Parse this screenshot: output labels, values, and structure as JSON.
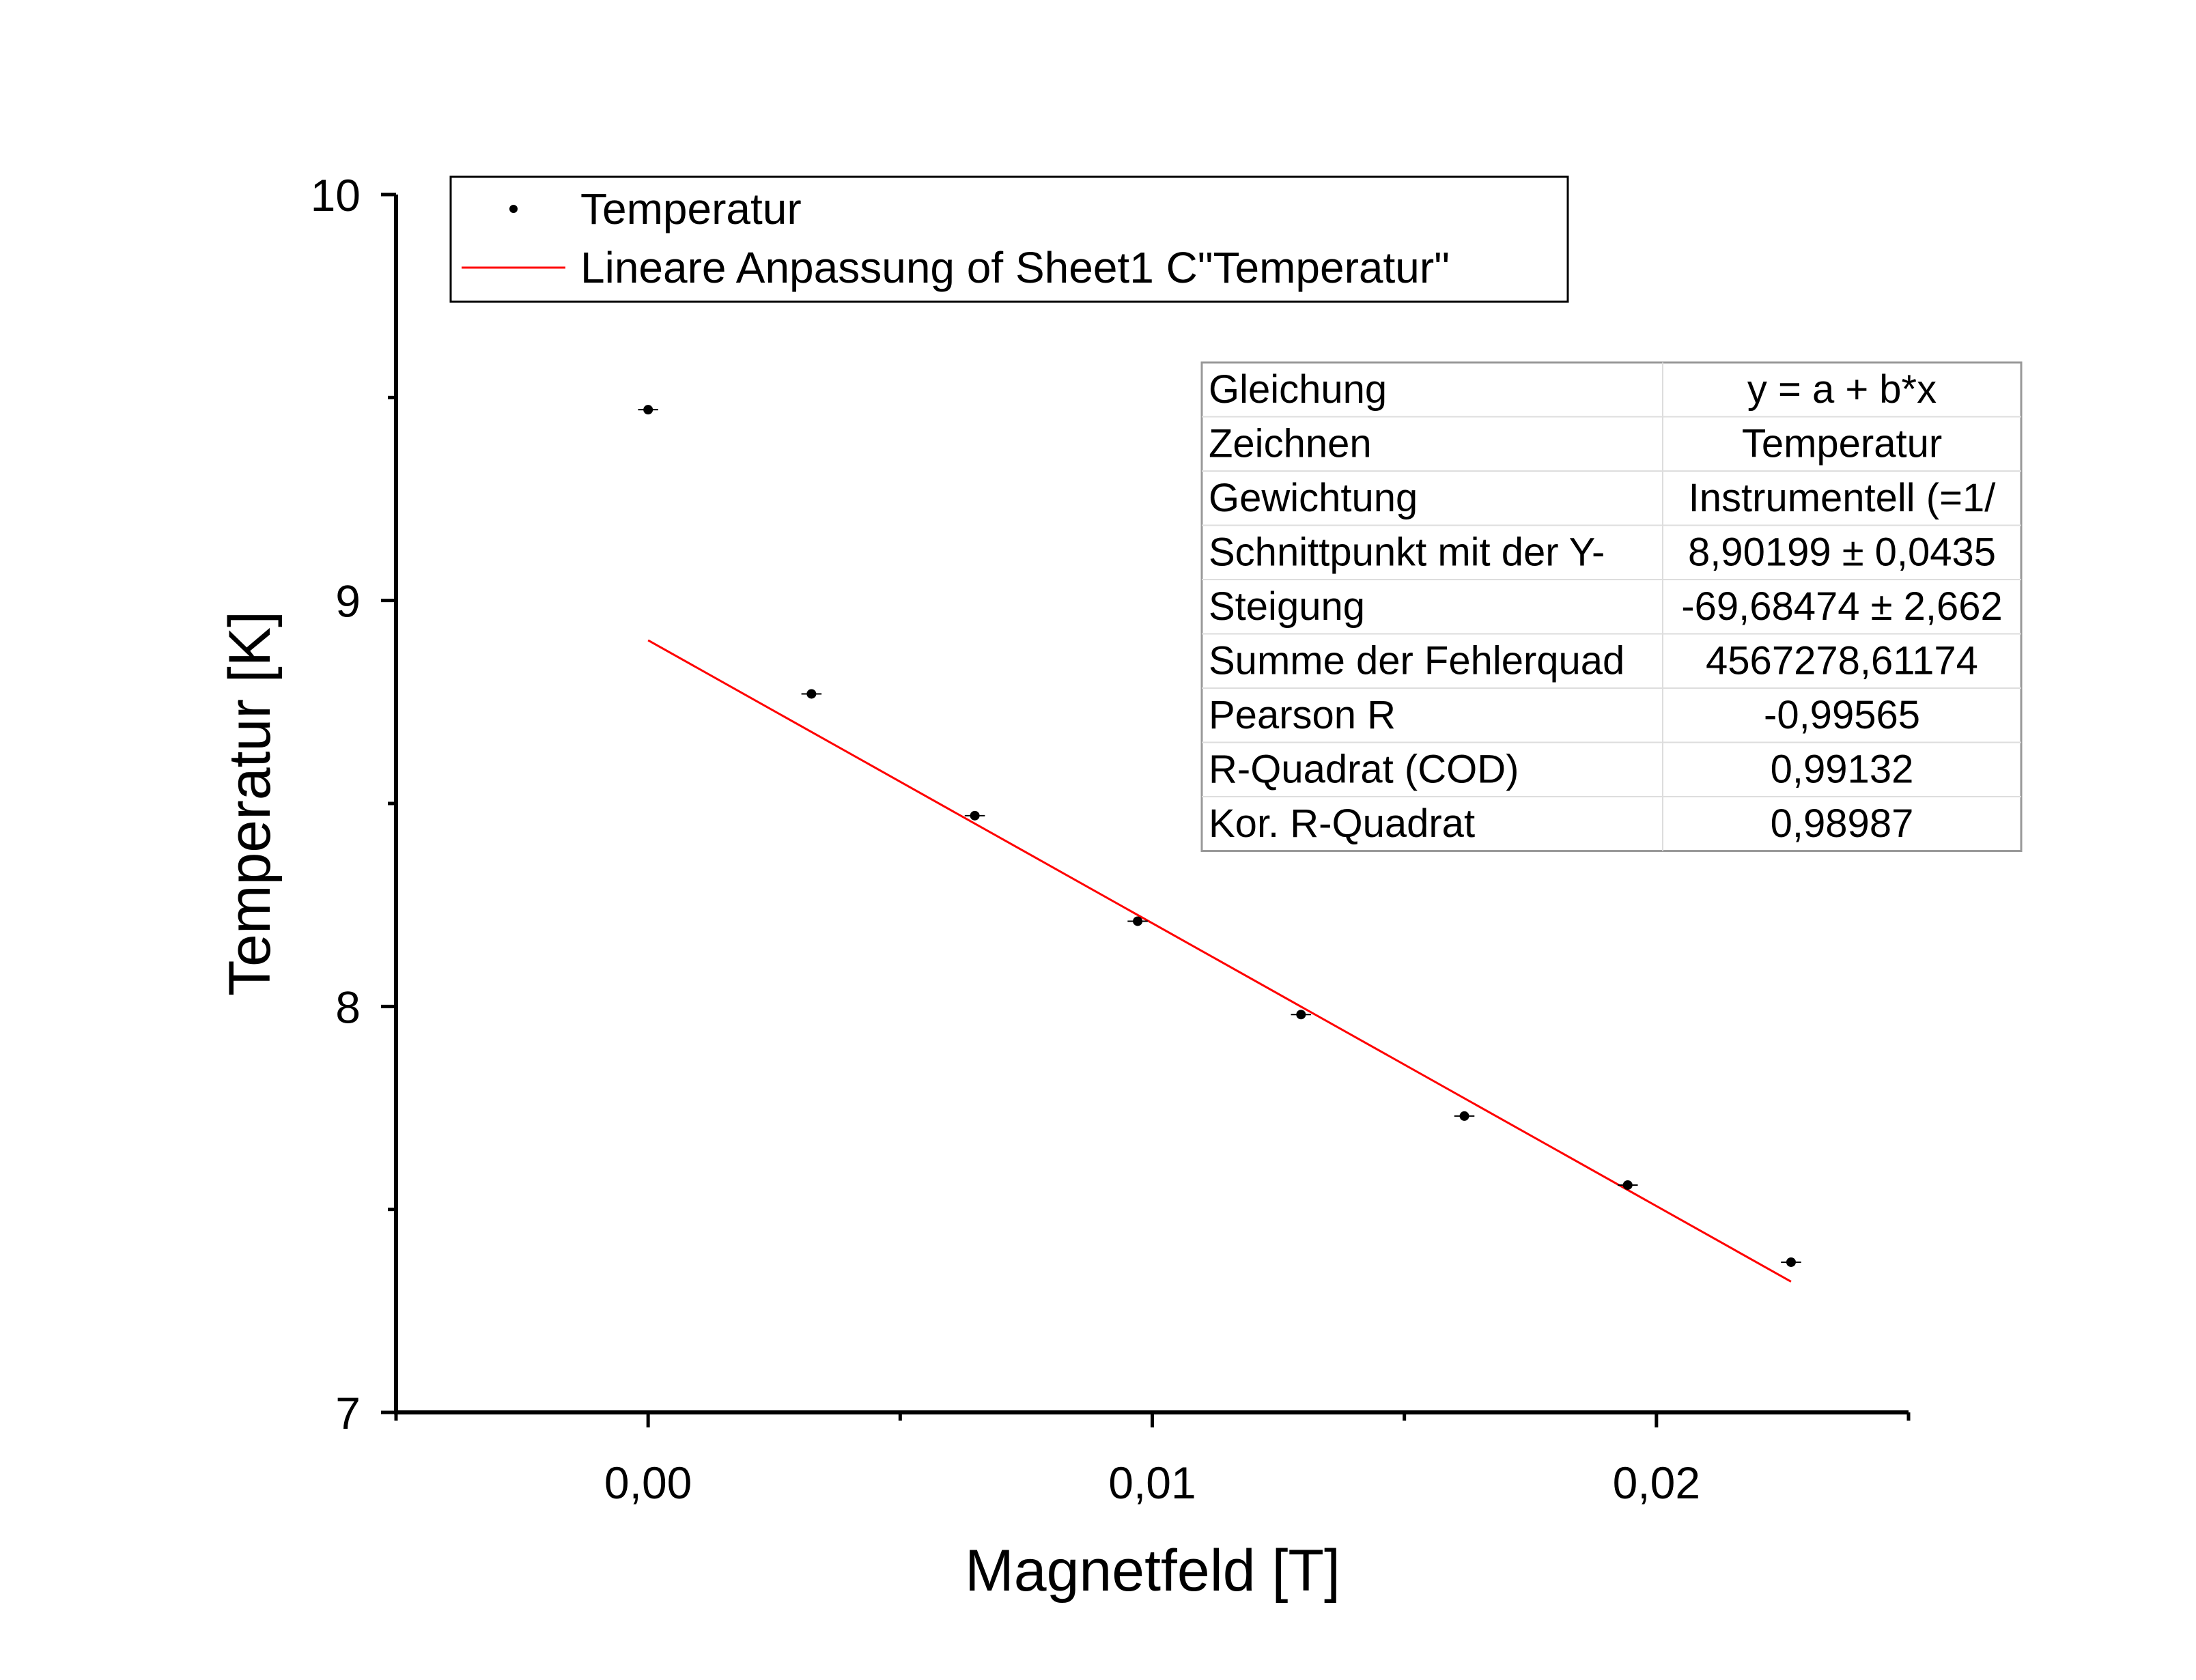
{
  "chart_data": {
    "type": "scatter",
    "xlabel": "Magnetfeld [T]",
    "ylabel": "Temperatur [K]",
    "xlim": [
      -0.005,
      0.025
    ],
    "ylim": [
      7,
      10
    ],
    "x_ticks": [
      0.0,
      0.01,
      0.02
    ],
    "x_tick_labels": [
      "0,00",
      "0,01",
      "0,02"
    ],
    "x_minor_ticks": [
      -0.005,
      0.005,
      0.015,
      0.025
    ],
    "y_ticks": [
      7,
      8,
      9,
      10
    ],
    "y_tick_labels": [
      "7",
      "8",
      "9",
      "10"
    ],
    "y_minor_ticks": [
      7.5,
      8.5,
      9.5
    ],
    "grid": false,
    "legend": {
      "position": "top-left",
      "entries": [
        {
          "label": "Temperatur",
          "marker": "dot",
          "color": "#000000"
        },
        {
          "label": "Lineare Anpassung of Sheet1 C\"Temperatur\"",
          "marker": "line",
          "color": "#ff0000"
        }
      ]
    },
    "series": [
      {
        "name": "Temperatur",
        "kind": "scatter",
        "color": "#000000",
        "x": [
          0.0,
          0.00324,
          0.00648,
          0.00971,
          0.01295,
          0.01619,
          0.01943,
          0.02267
        ],
        "y": [
          9.47,
          8.77,
          8.47,
          8.21,
          7.98,
          7.73,
          7.56,
          7.37
        ],
        "x_err": [
          0.0002,
          0.0002,
          0.0002,
          0.0002,
          0.0002,
          0.0002,
          0.0002,
          0.0002
        ]
      },
      {
        "name": "Lineare Anpassung of Sheet1 C\"Temperatur\"",
        "kind": "line",
        "color": "#ff0000",
        "x": [
          0.0,
          0.02267
        ],
        "y": [
          8.90199,
          7.32218
        ]
      }
    ],
    "fit_table": {
      "position": "top-right",
      "rows": [
        [
          "Gleichung",
          "y = a + b*x"
        ],
        [
          "Zeichnen",
          "Temperatur"
        ],
        [
          "Gewichtung",
          "Instrumentell (=1/"
        ],
        [
          "Schnittpunkt mit der Y-",
          "8,90199 ± 0,0435"
        ],
        [
          "Steigung",
          "-69,68474 ± 2,662"
        ],
        [
          "Summe der Fehlerquad",
          "4567278,61174"
        ],
        [
          "Pearson R",
          "-0,99565"
        ],
        [
          "R-Quadrat (COD)",
          "0,99132"
        ],
        [
          "Kor. R-Quadrat",
          "0,98987"
        ]
      ]
    }
  }
}
